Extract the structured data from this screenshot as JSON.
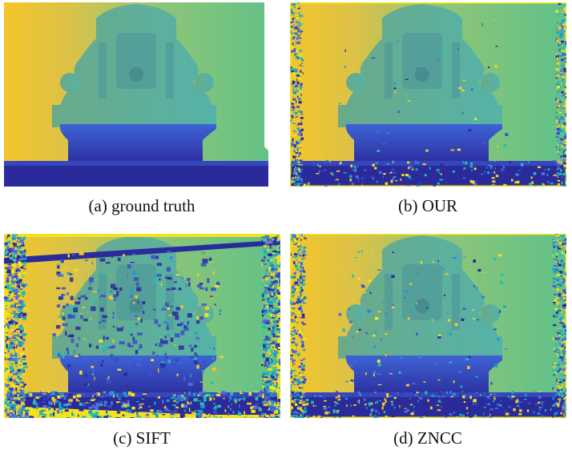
{
  "figure": {
    "panels": [
      {
        "caption": "(a) ground truth",
        "colormap": "parula",
        "style": "clean"
      },
      {
        "caption": "(b) OUR",
        "colormap": "parula",
        "style": "light-noise"
      },
      {
        "caption": "(c) SIFT",
        "colormap": "parula",
        "style": "heavy-noise"
      },
      {
        "caption": "(d) ZNCC",
        "colormap": "parula",
        "style": "medium-noise"
      }
    ],
    "colors": {
      "near_yellow": "#f5c52a",
      "far_teal": "#5fc18a",
      "foreground_blue": "#3a4ec6",
      "floor_dark": "#2b2a9a",
      "structure_cyan": "#55b3a8"
    }
  }
}
